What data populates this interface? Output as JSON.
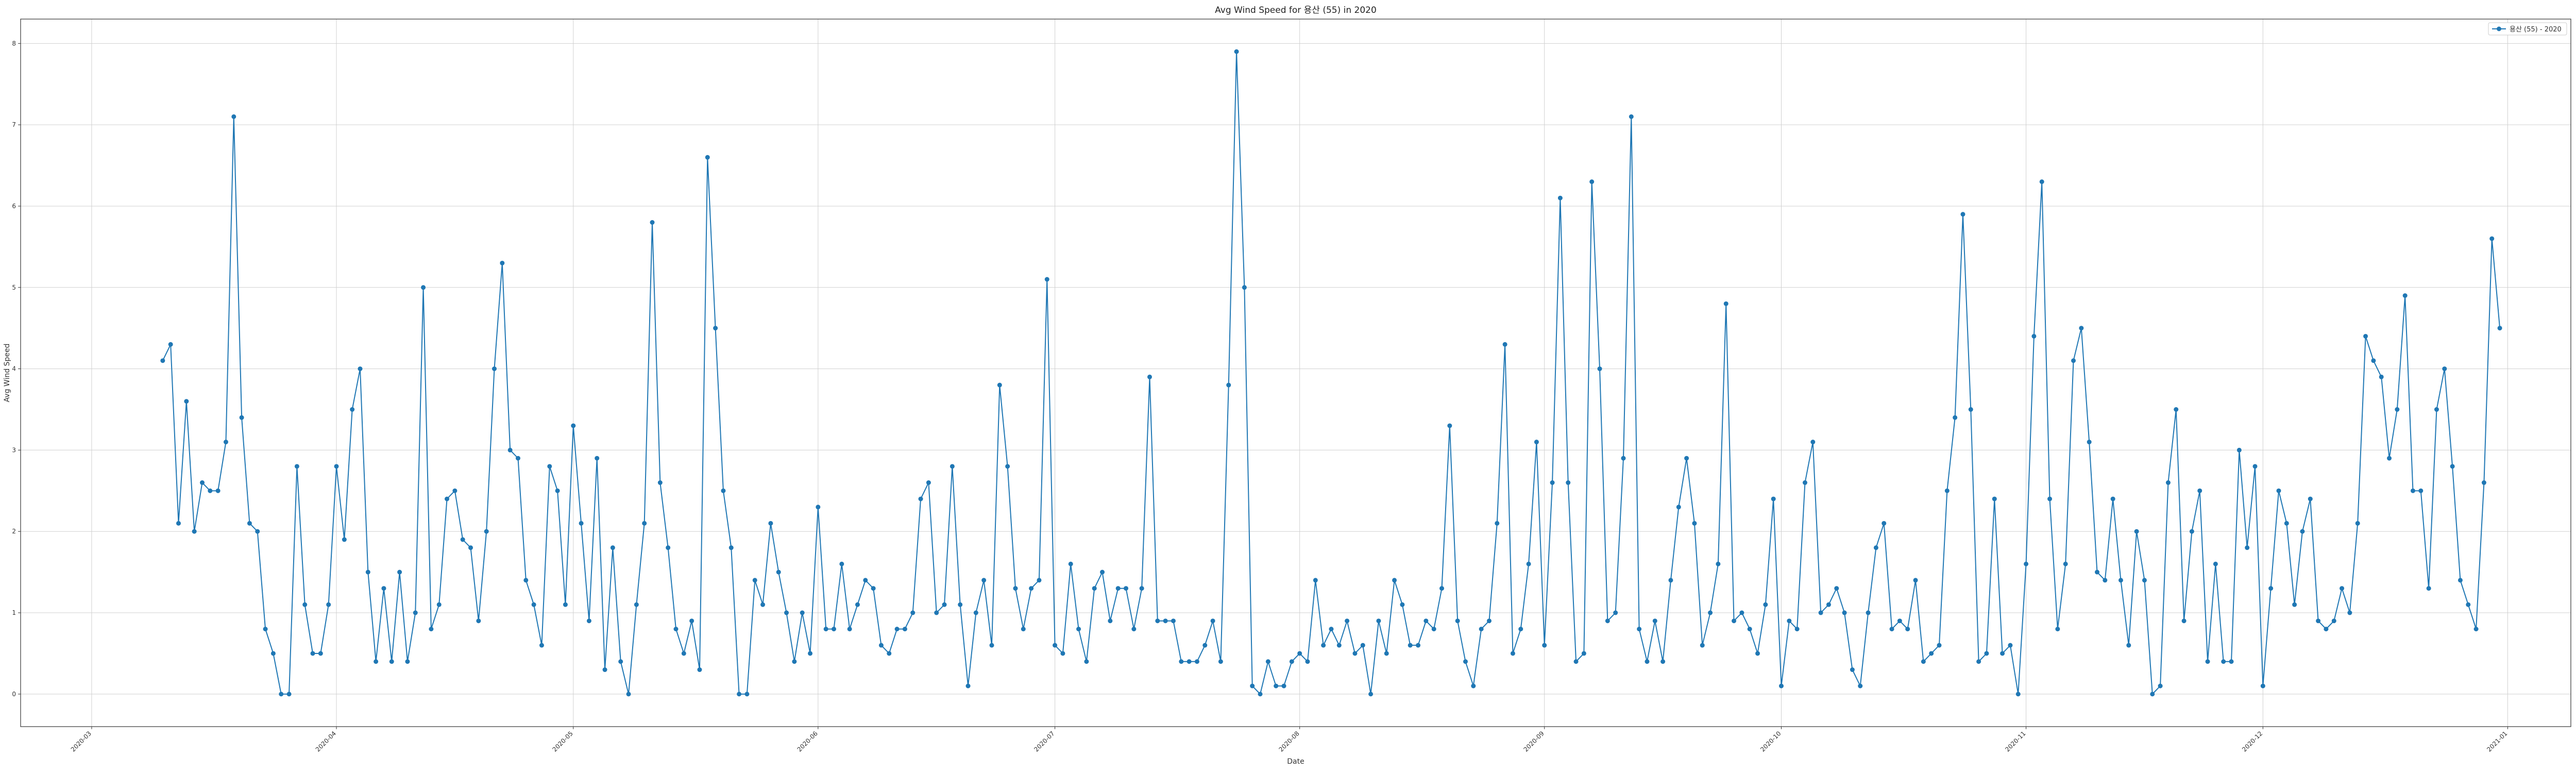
{
  "chart_data": {
    "type": "line",
    "title": "Avg Wind Speed for 용산 (55) in 2020",
    "xlabel": "Date",
    "ylabel": "Avg Wind Speed",
    "grid": true,
    "legend_position": "top-right",
    "color": "#1f77b4",
    "ylim": [
      -0.4,
      8.3
    ],
    "yticks": [
      0,
      1,
      2,
      3,
      4,
      5,
      6,
      7,
      8
    ],
    "xlim": [
      "2020-02-21",
      "2021-01-09"
    ],
    "xticks": [
      "2020-03",
      "2020-04",
      "2020-05",
      "2020-06",
      "2020-07",
      "2020-08",
      "2020-09",
      "2020-10",
      "2020-11",
      "2020-12",
      "2021-01"
    ],
    "xtick_dates": [
      "2020-03-01",
      "2020-04-01",
      "2020-05-01",
      "2020-06-01",
      "2020-07-01",
      "2020-08-01",
      "2020-09-01",
      "2020-10-01",
      "2020-11-01",
      "2020-12-01",
      "2021-01-01"
    ],
    "series": [
      {
        "name": "용산 (55) - 2020",
        "start_date": "2020-03-10",
        "interval_days": 1,
        "values": [
          4.1,
          4.3,
          2.1,
          3.6,
          2.0,
          2.6,
          2.5,
          2.5,
          3.1,
          7.1,
          3.4,
          2.1,
          2.0,
          0.8,
          0.5,
          0.0,
          0.0,
          2.8,
          1.1,
          0.5,
          0.5,
          1.1,
          2.8,
          1.9,
          3.5,
          4.0,
          1.5,
          0.4,
          1.3,
          0.4,
          1.5,
          0.4,
          1.0,
          5.0,
          0.8,
          1.1,
          2.4,
          2.5,
          1.9,
          1.8,
          0.9,
          2.0,
          4.0,
          5.3,
          3.0,
          2.9,
          1.4,
          1.1,
          0.6,
          2.8,
          2.5,
          1.1,
          3.3,
          2.1,
          0.9,
          2.9,
          0.3,
          1.8,
          0.4,
          0.0,
          1.1,
          2.1,
          5.8,
          2.6,
          1.8,
          0.8,
          0.5,
          0.9,
          0.3,
          6.6,
          4.5,
          2.5,
          1.8,
          0.0,
          0.0,
          1.4,
          1.1,
          2.1,
          1.5,
          1.0,
          0.4,
          1.0,
          0.5,
          2.3,
          0.8,
          0.8,
          1.6,
          0.8,
          1.1,
          1.4,
          1.3,
          0.6,
          0.5,
          0.8,
          0.8,
          1.0,
          2.4,
          2.6,
          1.0,
          1.1,
          2.8,
          1.1,
          0.1,
          1.0,
          1.4,
          0.6,
          3.8,
          2.8,
          1.3,
          0.8,
          1.3,
          1.4,
          5.1,
          0.6,
          0.5,
          1.6,
          0.8,
          0.4,
          1.3,
          1.5,
          0.9,
          1.3,
          1.3,
          0.8,
          1.3,
          3.9,
          0.9,
          0.9,
          0.9,
          0.4,
          0.4,
          0.4,
          0.6,
          0.9,
          0.4,
          3.8,
          7.9,
          5.0,
          0.1,
          0.0,
          0.4,
          0.1,
          0.1,
          0.4,
          0.5,
          0.4,
          1.4,
          0.6,
          0.8,
          0.6,
          0.9,
          0.5,
          0.6,
          0.0,
          0.9,
          0.5,
          1.4,
          1.1,
          0.6,
          0.6,
          0.9,
          0.8,
          1.3,
          3.3,
          0.9,
          0.4,
          0.1,
          0.8,
          0.9,
          2.1,
          4.3,
          0.5,
          0.8,
          1.6,
          3.1,
          0.6,
          2.6,
          6.1,
          2.6,
          0.4,
          0.5,
          6.3,
          4.0,
          0.9,
          1.0,
          2.9,
          7.1,
          0.8,
          0.4,
          0.9,
          0.4,
          1.4,
          2.3,
          2.9,
          2.1,
          0.6,
          1.0,
          1.6,
          4.8,
          0.9,
          1.0,
          0.8,
          0.5,
          1.1,
          2.4,
          0.1,
          0.9,
          0.8,
          2.6,
          3.1,
          1.0,
          1.1,
          1.3,
          1.0,
          0.3,
          0.1,
          1.0,
          1.8,
          2.1,
          0.8,
          0.9,
          0.8,
          1.4,
          0.4,
          0.5,
          0.6,
          2.5,
          3.4,
          5.9,
          3.5,
          0.4,
          0.5,
          2.4,
          0.5,
          0.6,
          0.0,
          1.6,
          4.4,
          6.3,
          2.4,
          0.8,
          1.6,
          4.1,
          4.5,
          3.1,
          1.5,
          1.4,
          2.4,
          1.4,
          0.6,
          2.0,
          1.4,
          0.0,
          0.1,
          2.6,
          3.5,
          0.9,
          2.0,
          2.5,
          0.4,
          1.6,
          0.4,
          0.4,
          3.0,
          1.8,
          2.8,
          0.1,
          1.3,
          2.5,
          2.1,
          1.1,
          2.0,
          2.4,
          0.9,
          0.8,
          0.9,
          1.3,
          1.0,
          2.1,
          4.4,
          4.1,
          3.9,
          2.9,
          3.5,
          4.9,
          2.5,
          2.5,
          1.3,
          3.5,
          4.0,
          2.8,
          1.4,
          1.1,
          0.8,
          2.6,
          5.6,
          4.5
        ]
      }
    ]
  }
}
